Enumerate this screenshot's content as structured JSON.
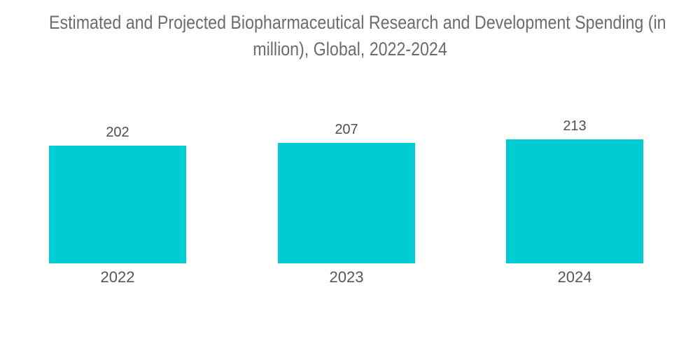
{
  "header": {
    "title_line1": "Estimated and Projected Biopharmaceutical Research and Development Spending (in",
    "title_line2": "million), Global, 2022-2024"
  },
  "chart_data": {
    "type": "bar",
    "title": "Estimated and Projected Biopharmaceutical Research and Development Spending (in million), Global, 2022-2024",
    "categories": [
      "2022",
      "2023",
      "2024"
    ],
    "values": [
      202,
      207,
      213
    ],
    "value_labels": [
      "202",
      "207",
      "213"
    ],
    "xlabel": "",
    "ylabel": "",
    "grid": false,
    "legend": false,
    "axes_visible": false,
    "value_label_position": "above-bar",
    "category_label_position": "below-bar",
    "colors": {
      "bar": "#00CDD2",
      "title": "#6A6C6E",
      "value_label": "#4E5053",
      "category_label": "#55575A",
      "background": "#FFFFFF"
    }
  }
}
